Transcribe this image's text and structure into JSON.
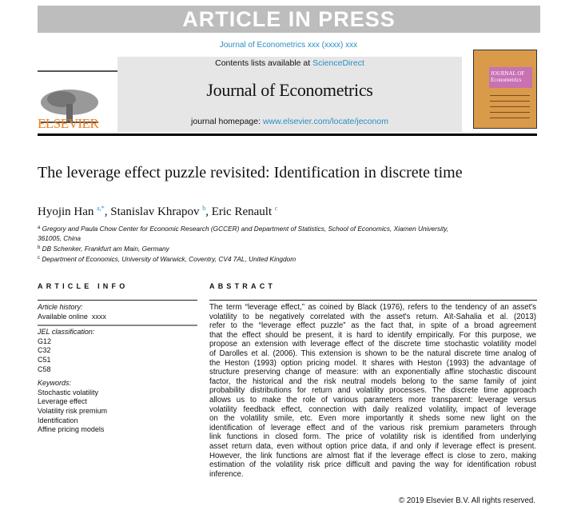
{
  "banner": "ARTICLE IN PRESS",
  "journal_ref": "Journal of Econometrics xxx (xxxx) xxx",
  "header": {
    "contents_prefix": "Contents lists available at ",
    "contents_link": "ScienceDirect",
    "journal_title": "Journal of Econometrics",
    "homepage_prefix": "journal homepage: ",
    "homepage_link": "www.elsevier.com/locate/jeconom",
    "publisher": "ELSEVIER",
    "cover_title": "JOURNAL OF Econometrics"
  },
  "title": "The leverage effect puzzle revisited: Identification in discrete time",
  "authors": [
    {
      "name": "Hyojin Han",
      "sup": "a,*"
    },
    {
      "name": "Stanislav Khrapov",
      "sup": "b"
    },
    {
      "name": "Eric Renault",
      "sup": "c"
    }
  ],
  "affiliations": [
    {
      "sup": "a",
      "text": "Gregory and Paula Chow Center for Economic Research (GCCER) and Department of Statistics, School of Economics, Xiamen University, 361005, China"
    },
    {
      "sup": "b",
      "text": "DB Schenker, Frankfurt am Main, Germany"
    },
    {
      "sup": "c",
      "text": "Department of Economics, University of Warwick, Coventry, CV4 7AL, United Kingdom"
    }
  ],
  "article_info": {
    "heading": "ARTICLE INFO",
    "history_label": "Article history:",
    "history": "Available online  xxxx",
    "jel_label": "JEL classification:",
    "jel": [
      "G12",
      "C32",
      "C51",
      "C58"
    ],
    "keywords_label": "Keywords:",
    "keywords": [
      "Stochastic volatility",
      "Leverage effect",
      "Volatility risk premium",
      "Identification",
      "Affine pricing models"
    ]
  },
  "abstract": {
    "heading": "ABSTRACT",
    "lines": [
      "The term “leverage effect,” as coined by Black (1976), refers to the tendency of an asset's",
      "volatility to be negatively correlated with the asset's return. Aït-Sahalia et al. (2013)",
      "refer to the “leverage effect puzzle” as the fact that, in spite of a broad agreement",
      "that the effect should be present, it is hard to identify empirically. For this purpose, we",
      "propose an extension with leverage effect of the discrete time stochastic volatility model",
      "of Darolles et al. (2006). This extension is shown to be the natural discrete time analog of",
      "the Heston (1993) option pricing model. It shares with Heston (1993) the advantage of",
      "structure preserving change of measure: with an exponentially affine stochastic discount",
      "factor, the historical and the risk neutral models belong to the same family of joint",
      "probability distributions for return and volatility processes. The discrete time approach",
      "allows us to make the role of various parameters more transparent: leverage versus",
      "volatility feedback effect, connection with daily realized volatility, impact of leverage",
      "on the volatility smile, etc. Even more importantly it sheds some new light on the",
      "identification of leverage effect and of the various risk premium parameters through",
      "link functions in closed form. The price of volatility risk is identified from underlying",
      "asset return data, even without option price data, if and only if leverage effect is present.",
      "However, the link functions are almost flat if the leverage effect is close to zero, making",
      "estimation of the volatility risk price difficult and paving the way for identification robust",
      "inference."
    ],
    "copyright": "© 2019 Elsevier B.V. All rights reserved."
  }
}
